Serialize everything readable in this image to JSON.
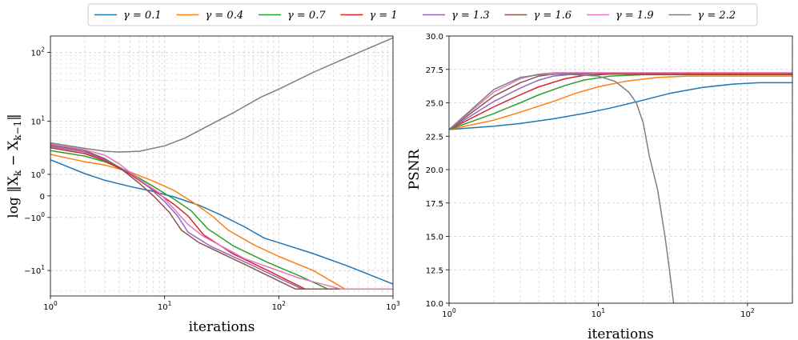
{
  "legend": {
    "placement": "top-center",
    "entries": [
      {
        "label": "γ = 0.1",
        "color": "#1f77b4"
      },
      {
        "label": "γ = 0.4",
        "color": "#ff7f0e"
      },
      {
        "label": "γ = 0.7",
        "color": "#2ca02c"
      },
      {
        "label": "γ = 1",
        "color": "#d62728"
      },
      {
        "label": "γ = 1.3",
        "color": "#9467bd"
      },
      {
        "label": "γ = 1.6",
        "color": "#8c564b"
      },
      {
        "label": "γ = 1.9",
        "color": "#e377c2"
      },
      {
        "label": "γ = 2.2",
        "color": "#7f7f7f"
      }
    ]
  },
  "chart_data": [
    {
      "type": "line",
      "xlabel": "iterations",
      "ylabel": "log ‖X_k − X_{k−1}‖",
      "xscale": "log",
      "yscale": "symlog",
      "xlim": [
        1,
        1000
      ],
      "ylim": [
        -24,
        170
      ],
      "grid": true,
      "x_ticks": [
        {
          "v": 1,
          "label": "10^0"
        },
        {
          "v": 10,
          "label": "10^1"
        },
        {
          "v": 100,
          "label": "10^2"
        },
        {
          "v": 1000,
          "label": "10^3"
        }
      ],
      "y_ticks": [
        {
          "v": 100,
          "label": "10^2"
        },
        {
          "v": 10,
          "label": "10^1"
        },
        {
          "v": 1,
          "label": "10^0"
        },
        {
          "v": 0,
          "label": "0"
        },
        {
          "v": -1,
          "label": "−10^0"
        },
        {
          "v": -10,
          "label": "−10^1"
        }
      ],
      "series": [
        {
          "name": "γ = 0.1",
          "color": "#1f77b4",
          "points": [
            [
              1,
              2.2
            ],
            [
              2,
              1.05
            ],
            [
              3,
              0.65
            ],
            [
              5,
              0.35
            ],
            [
              8,
              0.15
            ],
            [
              12,
              -0.03
            ],
            [
              20,
              -0.35
            ],
            [
              30,
              -0.8
            ],
            [
              50,
              -1.7
            ],
            [
              75,
              -2.9
            ],
            [
              100,
              -3.5
            ],
            [
              200,
              -5.4
            ],
            [
              400,
              -8.5
            ],
            [
              1000,
              -16
            ]
          ]
        },
        {
          "name": "γ = 0.4",
          "color": "#ff7f0e",
          "points": [
            [
              1,
              2.8
            ],
            [
              2,
              2.0
            ],
            [
              3,
              1.7
            ],
            [
              5,
              1.15
            ],
            [
              8,
              0.6
            ],
            [
              12,
              0.2
            ],
            [
              18,
              -0.25
            ],
            [
              26,
              -0.9
            ],
            [
              36,
              -2.0
            ],
            [
              60,
              -3.8
            ],
            [
              100,
              -6
            ],
            [
              200,
              -10
            ],
            [
              380,
              -19
            ],
            [
              1000,
              -19
            ]
          ]
        },
        {
          "name": "γ = 0.7",
          "color": "#2ca02c",
          "points": [
            [
              1,
              3.3
            ],
            [
              2,
              2.6
            ],
            [
              3,
              2.0
            ],
            [
              5,
              1.1
            ],
            [
              8,
              0.35
            ],
            [
              12,
              -0.1
            ],
            [
              17,
              -0.6
            ],
            [
              24,
              -1.9
            ],
            [
              40,
              -4
            ],
            [
              80,
              -7.5
            ],
            [
              150,
              -12
            ],
            [
              270,
              -19
            ],
            [
              1000,
              -19
            ]
          ]
        },
        {
          "name": "γ = 1",
          "color": "#d62728",
          "points": [
            [
              1,
              3.7
            ],
            [
              2,
              2.9
            ],
            [
              3,
              2.1
            ],
            [
              5,
              1.0
            ],
            [
              8,
              0.2
            ],
            [
              12,
              -0.3
            ],
            [
              16,
              -0.9
            ],
            [
              22,
              -2.5
            ],
            [
              40,
              -5.5
            ],
            [
              80,
              -10
            ],
            [
              170,
              -19
            ],
            [
              1000,
              -19
            ]
          ]
        },
        {
          "name": "γ = 1.3",
          "color": "#9467bd",
          "points": [
            [
              1,
              3.9
            ],
            [
              2,
              3.1
            ],
            [
              3,
              2.2
            ],
            [
              5,
              1.1
            ],
            [
              7,
              0.4
            ],
            [
              10,
              -0.2
            ],
            [
              13,
              -0.9
            ],
            [
              16,
              -2.2
            ],
            [
              25,
              -4
            ],
            [
              60,
              -8.5
            ],
            [
              160,
              -19
            ],
            [
              1000,
              -19
            ]
          ]
        },
        {
          "name": "γ = 1.6",
          "color": "#8c564b",
          "points": [
            [
              1,
              4.1
            ],
            [
              2,
              3.3
            ],
            [
              3,
              2.3
            ],
            [
              4,
              1.5
            ],
            [
              6,
              0.5
            ],
            [
              8,
              0.0
            ],
            [
              11,
              -0.7
            ],
            [
              14,
              -2.0
            ],
            [
              20,
              -3.5
            ],
            [
              50,
              -8
            ],
            [
              140,
              -19
            ],
            [
              1000,
              -19
            ]
          ]
        },
        {
          "name": "γ = 1.9",
          "color": "#e377c2",
          "points": [
            [
              1,
              4.3
            ],
            [
              2,
              3.4
            ],
            [
              3,
              2.7
            ],
            [
              4,
              1.8
            ],
            [
              6,
              0.7
            ],
            [
              9,
              0.1
            ],
            [
              12,
              -0.5
            ],
            [
              16,
              -1.5
            ],
            [
              22,
              -2.7
            ],
            [
              50,
              -6.5
            ],
            [
              150,
              -13
            ],
            [
              350,
              -19
            ],
            [
              1000,
              -19
            ]
          ]
        },
        {
          "name": "γ = 2.2",
          "color": "#7f7f7f",
          "points": [
            [
              1,
              4.5
            ],
            [
              2,
              3.6
            ],
            [
              3,
              3.2
            ],
            [
              4,
              3.1
            ],
            [
              6,
              3.2
            ],
            [
              10,
              4.0
            ],
            [
              15,
              5.4
            ],
            [
              25,
              8.8
            ],
            [
              40,
              13.5
            ],
            [
              70,
              23
            ],
            [
              100,
              30
            ],
            [
              200,
              52
            ],
            [
              400,
              85
            ],
            [
              1000,
              160
            ]
          ]
        }
      ]
    },
    {
      "type": "line",
      "xlabel": "iterations",
      "ylabel": "PSNR",
      "xscale": "log",
      "yscale": "linear",
      "xlim": [
        1,
        200
      ],
      "ylim": [
        10.0,
        30.0
      ],
      "grid": true,
      "x_ticks": [
        {
          "v": 1,
          "label": "10^0"
        },
        {
          "v": 10,
          "label": "10^1"
        },
        {
          "v": 100,
          "label": "10^2"
        }
      ],
      "y_ticks": [
        {
          "v": 10.0,
          "label": "10.0"
        },
        {
          "v": 12.5,
          "label": "12.5"
        },
        {
          "v": 15.0,
          "label": "15.0"
        },
        {
          "v": 17.5,
          "label": "17.5"
        },
        {
          "v": 20.0,
          "label": "20.0"
        },
        {
          "v": 22.5,
          "label": "22.5"
        },
        {
          "v": 25.0,
          "label": "25.0"
        },
        {
          "v": 27.5,
          "label": "27.5"
        },
        {
          "v": 30.0,
          "label": "30.0"
        }
      ],
      "series": [
        {
          "name": "γ = 0.1",
          "color": "#1f77b4",
          "points": [
            [
              1,
              23.0
            ],
            [
              2,
              23.25
            ],
            [
              3,
              23.45
            ],
            [
              5,
              23.8
            ],
            [
              8,
              24.2
            ],
            [
              12,
              24.6
            ],
            [
              20,
              25.2
            ],
            [
              30,
              25.7
            ],
            [
              50,
              26.15
            ],
            [
              80,
              26.4
            ],
            [
              120,
              26.5
            ],
            [
              200,
              26.5
            ]
          ]
        },
        {
          "name": "γ = 0.4",
          "color": "#ff7f0e",
          "points": [
            [
              1,
              23.0
            ],
            [
              2,
              23.7
            ],
            [
              3,
              24.3
            ],
            [
              5,
              25.1
            ],
            [
              7,
              25.7
            ],
            [
              10,
              26.2
            ],
            [
              15,
              26.6
            ],
            [
              25,
              26.9
            ],
            [
              40,
              27.0
            ],
            [
              200,
              27.0
            ]
          ]
        },
        {
          "name": "γ = 0.7",
          "color": "#2ca02c",
          "points": [
            [
              1,
              23.0
            ],
            [
              2,
              24.2
            ],
            [
              3,
              25.0
            ],
            [
              4,
              25.6
            ],
            [
              6,
              26.3
            ],
            [
              8,
              26.7
            ],
            [
              12,
              27.0
            ],
            [
              20,
              27.1
            ],
            [
              200,
              27.1
            ]
          ]
        },
        {
          "name": "γ = 1",
          "color": "#d62728",
          "points": [
            [
              1,
              23.0
            ],
            [
              2,
              24.7
            ],
            [
              3,
              25.6
            ],
            [
              4,
              26.2
            ],
            [
              6,
              26.8
            ],
            [
              8,
              27.05
            ],
            [
              12,
              27.15
            ],
            [
              200,
              27.15
            ]
          ]
        },
        {
          "name": "γ = 1.3",
          "color": "#9467bd",
          "points": [
            [
              1,
              23.0
            ],
            [
              2,
              25.1
            ],
            [
              3,
              26.1
            ],
            [
              4,
              26.7
            ],
            [
              5,
              27.0
            ],
            [
              7,
              27.15
            ],
            [
              10,
              27.2
            ],
            [
              200,
              27.2
            ]
          ]
        },
        {
          "name": "γ = 1.6",
          "color": "#8c564b",
          "points": [
            [
              1,
              23.0
            ],
            [
              2,
              25.5
            ],
            [
              3,
              26.5
            ],
            [
              4,
              27.0
            ],
            [
              5,
              27.15
            ],
            [
              7,
              27.2
            ],
            [
              200,
              27.2
            ]
          ]
        },
        {
          "name": "γ = 1.9",
          "color": "#e377c2",
          "points": [
            [
              1,
              23.0
            ],
            [
              2,
              25.8
            ],
            [
              3,
              26.8
            ],
            [
              4,
              27.15
            ],
            [
              5,
              27.25
            ],
            [
              200,
              27.25
            ]
          ]
        },
        {
          "name": "γ = 2.2",
          "color": "#7f7f7f",
          "points": [
            [
              1,
              23.0
            ],
            [
              2,
              26.0
            ],
            [
              3,
              26.9
            ],
            [
              4,
              27.1
            ],
            [
              6,
              27.15
            ],
            [
              10,
              27.0
            ],
            [
              13,
              26.6
            ],
            [
              16,
              25.8
            ],
            [
              18,
              25.0
            ],
            [
              20,
              23.5
            ],
            [
              22,
              21.0
            ],
            [
              25,
              18.5
            ],
            [
              28,
              15.0
            ],
            [
              30,
              12.5
            ],
            [
              32,
              10.0
            ]
          ]
        }
      ]
    }
  ]
}
